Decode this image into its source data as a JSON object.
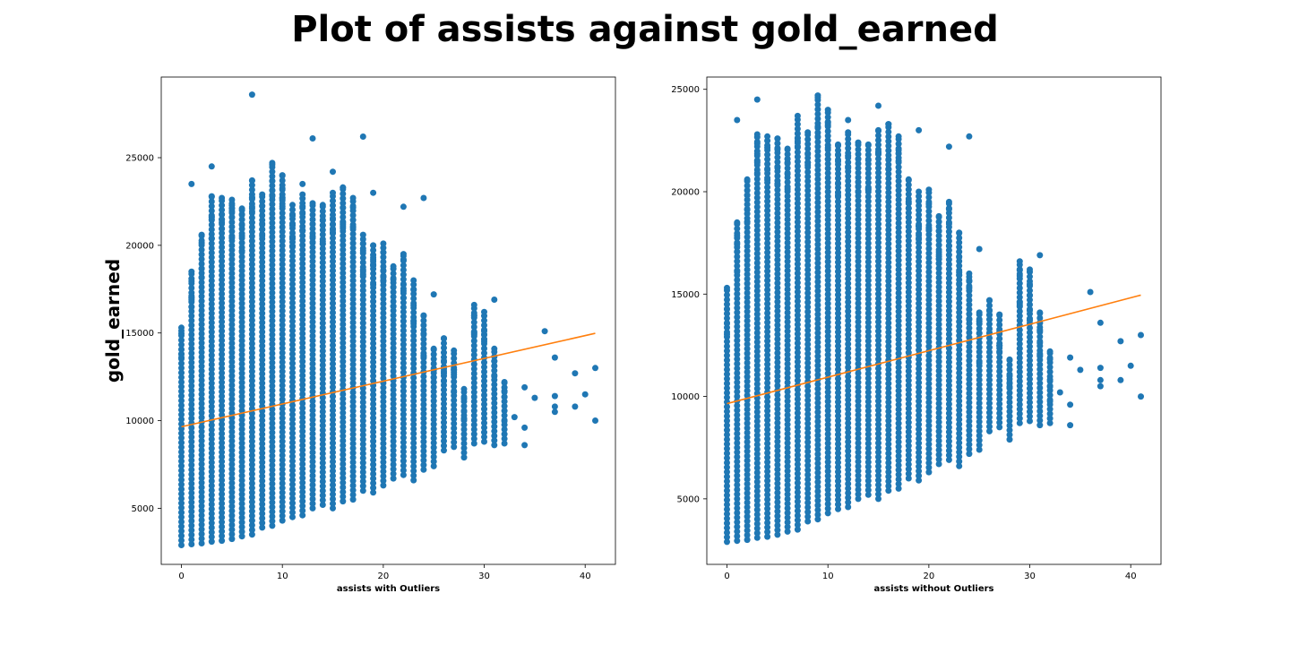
{
  "figure": {
    "suptitle": "Plot of assists against gold_earned"
  },
  "chart_data": [
    {
      "type": "scatter",
      "title": "",
      "xlabel": "assists with Outliers",
      "ylabel": "gold_earned",
      "xlim": [
        -2,
        43
      ],
      "ylim": [
        1800,
        29600
      ],
      "xticks": [
        0,
        10,
        20,
        30,
        40
      ],
      "yticks": [
        5000,
        10000,
        15000,
        20000,
        25000
      ],
      "grid": false,
      "marker_color": "#1f77b4",
      "line_color": "#ff7f0e",
      "regression_line": {
        "x": [
          0,
          41
        ],
        "y": [
          9650,
          14980
        ]
      },
      "column_ranges": [
        [
          0,
          2900,
          15300
        ],
        [
          1,
          2950,
          18500
        ],
        [
          2,
          3000,
          20600
        ],
        [
          3,
          3100,
          22800
        ],
        [
          4,
          3150,
          22700
        ],
        [
          5,
          3250,
          22600
        ],
        [
          6,
          3400,
          22100
        ],
        [
          7,
          3500,
          23700
        ],
        [
          8,
          3900,
          22900
        ],
        [
          9,
          4000,
          24700
        ],
        [
          10,
          4300,
          24000
        ],
        [
          11,
          4500,
          22300
        ],
        [
          12,
          4600,
          22900
        ],
        [
          13,
          5000,
          22400
        ],
        [
          14,
          5200,
          22300
        ],
        [
          15,
          5000,
          23000
        ],
        [
          16,
          5400,
          23300
        ],
        [
          17,
          5500,
          22700
        ],
        [
          18,
          6000,
          20600
        ],
        [
          19,
          5900,
          20000
        ],
        [
          20,
          6300,
          20100
        ],
        [
          21,
          6700,
          18800
        ],
        [
          22,
          6900,
          19500
        ],
        [
          23,
          6600,
          18000
        ],
        [
          24,
          7200,
          16000
        ],
        [
          25,
          7400,
          14100
        ],
        [
          26,
          8300,
          14700
        ],
        [
          27,
          8500,
          14000
        ],
        [
          28,
          7900,
          11800
        ],
        [
          29,
          8700,
          16600
        ],
        [
          30,
          8800,
          16200
        ],
        [
          31,
          8600,
          14100
        ],
        [
          32,
          8700,
          12200
        ]
      ],
      "extra_points": [
        [
          7,
          28600
        ],
        [
          13,
          26100
        ],
        [
          18,
          26200
        ],
        [
          9,
          24600
        ],
        [
          3,
          24500
        ],
        [
          15,
          24200
        ],
        [
          1,
          23500
        ],
        [
          12,
          23500
        ],
        [
          16,
          23300
        ],
        [
          19,
          23000
        ],
        [
          24,
          22700
        ],
        [
          22,
          22200
        ],
        [
          25,
          17200
        ],
        [
          31,
          16900
        ],
        [
          36,
          15100
        ],
        [
          34,
          11900
        ],
        [
          35,
          11300
        ],
        [
          37,
          13600
        ],
        [
          37,
          11400
        ],
        [
          37,
          10800
        ],
        [
          37,
          10500
        ],
        [
          39,
          12700
        ],
        [
          40,
          11500
        ],
        [
          39,
          10800
        ],
        [
          41,
          13000
        ],
        [
          41,
          10000
        ],
        [
          34,
          9600
        ],
        [
          34,
          8600
        ],
        [
          33,
          10200
        ]
      ]
    },
    {
      "type": "scatter",
      "title": "",
      "xlabel": "assists without Outliers",
      "ylabel": "",
      "xlim": [
        -2,
        43
      ],
      "ylim": [
        1800,
        25600
      ],
      "xticks": [
        0,
        10,
        20,
        30,
        40
      ],
      "yticks": [
        5000,
        10000,
        15000,
        20000,
        25000
      ],
      "grid": false,
      "marker_color": "#1f77b4",
      "line_color": "#ff7f0e",
      "regression_line": {
        "x": [
          0,
          41
        ],
        "y": [
          9650,
          14950
        ]
      },
      "column_ranges": [
        [
          0,
          2900,
          15300
        ],
        [
          1,
          2950,
          18500
        ],
        [
          2,
          3000,
          20600
        ],
        [
          3,
          3100,
          22800
        ],
        [
          4,
          3150,
          22700
        ],
        [
          5,
          3250,
          22600
        ],
        [
          6,
          3400,
          22100
        ],
        [
          7,
          3500,
          23700
        ],
        [
          8,
          3900,
          22900
        ],
        [
          9,
          4000,
          24700
        ],
        [
          10,
          4300,
          24000
        ],
        [
          11,
          4500,
          22300
        ],
        [
          12,
          4600,
          22900
        ],
        [
          13,
          5000,
          22400
        ],
        [
          14,
          5200,
          22300
        ],
        [
          15,
          5000,
          23000
        ],
        [
          16,
          5400,
          23300
        ],
        [
          17,
          5500,
          22700
        ],
        [
          18,
          6000,
          20600
        ],
        [
          19,
          5900,
          20000
        ],
        [
          20,
          6300,
          20100
        ],
        [
          21,
          6700,
          18800
        ],
        [
          22,
          6900,
          19500
        ],
        [
          23,
          6600,
          18000
        ],
        [
          24,
          7200,
          16000
        ],
        [
          25,
          7400,
          14100
        ],
        [
          26,
          8300,
          14700
        ],
        [
          27,
          8500,
          14000
        ],
        [
          28,
          7900,
          11800
        ],
        [
          29,
          8700,
          16600
        ],
        [
          30,
          8800,
          16200
        ],
        [
          31,
          8600,
          14100
        ],
        [
          32,
          8700,
          12200
        ]
      ],
      "extra_points": [
        [
          3,
          24500
        ],
        [
          9,
          24600
        ],
        [
          15,
          24200
        ],
        [
          1,
          23500
        ],
        [
          12,
          23500
        ],
        [
          16,
          23300
        ],
        [
          19,
          23000
        ],
        [
          24,
          22700
        ],
        [
          22,
          22200
        ],
        [
          25,
          17200
        ],
        [
          31,
          16900
        ],
        [
          36,
          15100
        ],
        [
          34,
          11900
        ],
        [
          35,
          11300
        ],
        [
          37,
          13600
        ],
        [
          37,
          11400
        ],
        [
          37,
          10800
        ],
        [
          37,
          10500
        ],
        [
          39,
          12700
        ],
        [
          40,
          11500
        ],
        [
          39,
          10800
        ],
        [
          41,
          13000
        ],
        [
          41,
          10000
        ],
        [
          34,
          9600
        ],
        [
          34,
          8600
        ],
        [
          33,
          10200
        ]
      ]
    }
  ]
}
